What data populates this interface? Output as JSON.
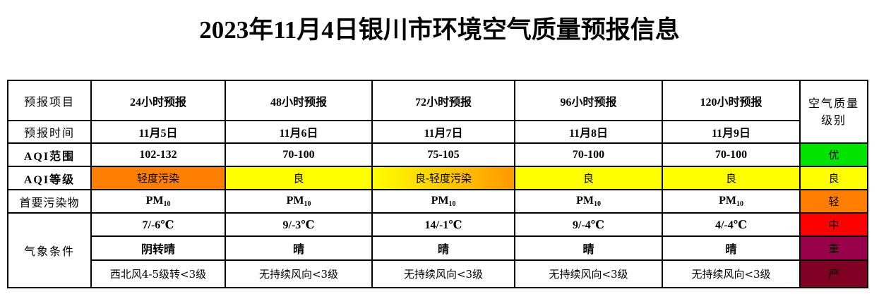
{
  "title": "2023年11月4日银川市环境空气质量预报信息",
  "row_headers": {
    "item": "预报项目",
    "time": "预报时间",
    "aqi_range": "AQI范围",
    "aqi_level": "AQI等级",
    "pollutant": "首要污染物",
    "weather": "气象条件"
  },
  "legend_header": "空气质量级别",
  "forecasts": [
    {
      "label": "24小时预报",
      "date": "11月5日",
      "aqi_range": "102-132",
      "aqi_level": "轻度污染",
      "level_color": "#ff8000",
      "pollutant": "PM",
      "pollutant_sub": "10",
      "temp": "7/-6℃",
      "sky": "阴转晴",
      "wind": "西北风4-5级转<3级"
    },
    {
      "label": "48小时预报",
      "date": "11月6日",
      "aqi_range": "70-100",
      "aqi_level": "良",
      "level_color": "#ffff00",
      "pollutant": "PM",
      "pollutant_sub": "10",
      "temp": "9/-3℃",
      "sky": "晴",
      "wind": "无持续风向<3级"
    },
    {
      "label": "72小时预报",
      "date": "11月7日",
      "aqi_range": "75-105",
      "aqi_level": "良-轻度污染",
      "level_color": "linear-gradient(to right,#ffff00,#ff9900)",
      "pollutant": "PM",
      "pollutant_sub": "10",
      "temp": "14/-1℃",
      "sky": "晴",
      "wind": "无持续风向<3级"
    },
    {
      "label": "96小时预报",
      "date": "11月8日",
      "aqi_range": "70-100",
      "aqi_level": "良",
      "level_color": "#ffff00",
      "pollutant": "PM",
      "pollutant_sub": "10",
      "temp": "9/-4℃",
      "sky": "晴",
      "wind": "无持续风向<3级"
    },
    {
      "label": "120小时预报",
      "date": "11月9日",
      "aqi_range": "70-100",
      "aqi_level": "良",
      "level_color": "#ffff00",
      "pollutant": "PM",
      "pollutant_sub": "10",
      "temp": "4/-4℃",
      "sky": "晴",
      "wind": "无持续风向<3级"
    }
  ],
  "levels": [
    {
      "label": "优",
      "color": "#00e400",
      "text_color": "#000000"
    },
    {
      "label": "良",
      "color": "#ffff00",
      "text_color": "#000000"
    },
    {
      "label": "轻",
      "color": "#ff7e00",
      "text_color": "#000000"
    },
    {
      "label": "中",
      "color": "#ff0000",
      "text_color": "#000000"
    },
    {
      "label": "重",
      "color": "#99004c",
      "text_color": "#000000"
    },
    {
      "label": "严",
      "color": "#7e0023",
      "text_color": "#000000"
    }
  ]
}
